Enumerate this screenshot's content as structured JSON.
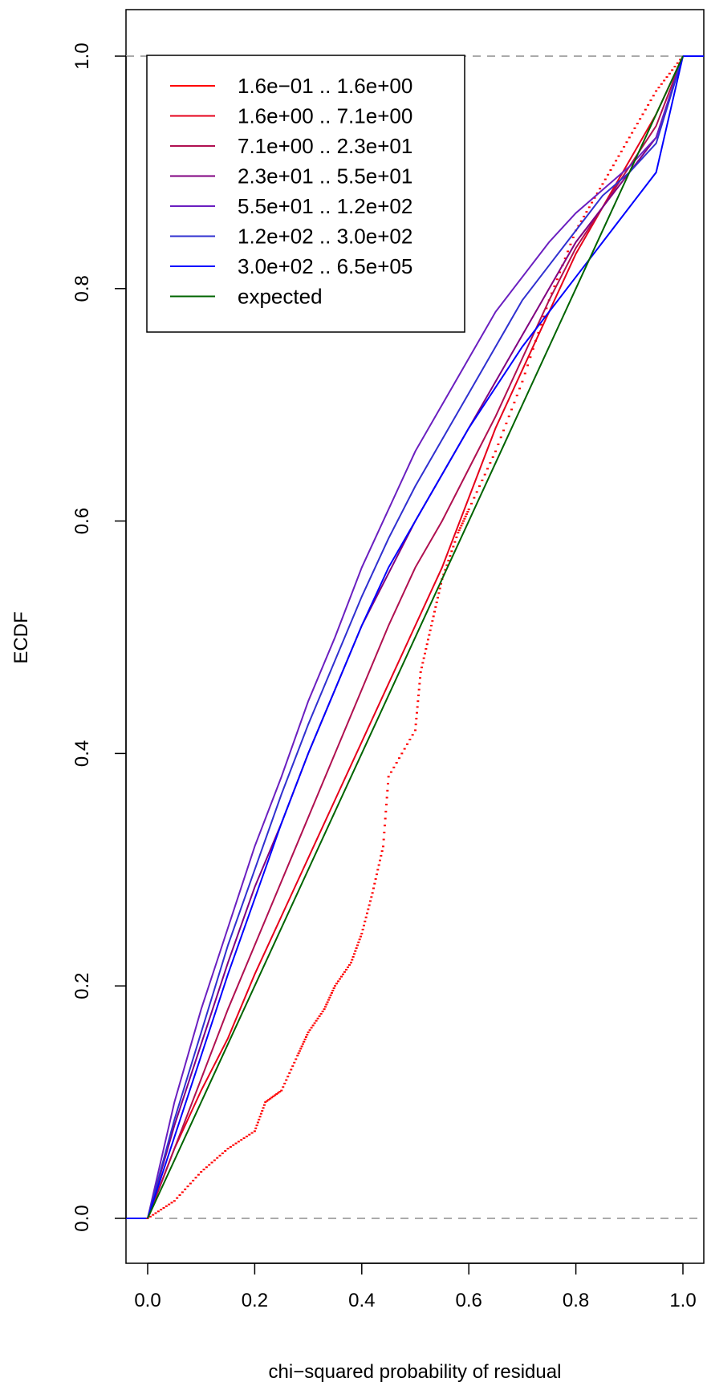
{
  "chart_data": {
    "type": "line",
    "title": "",
    "xlabel": "chi−squared probability of residual",
    "ylabel": "ECDF",
    "xlim": [
      -0.04,
      1.04
    ],
    "ylim": [
      -0.04,
      1.04
    ],
    "x_ticks": [
      "0.0",
      "0.2",
      "0.4",
      "0.6",
      "0.8",
      "1.0"
    ],
    "y_ticks": [
      "0.0",
      "0.2",
      "0.4",
      "0.6",
      "0.8",
      "1.0"
    ],
    "reference_lines": [
      0,
      1
    ],
    "grid": false,
    "legend_position": "top-left",
    "series": [
      {
        "name": "1.6e−01 .. 1.6e+00",
        "color": "#FF0000",
        "style": "points",
        "points": [
          [
            0,
            0
          ],
          [
            0.05,
            0.015
          ],
          [
            0.1,
            0.04
          ],
          [
            0.15,
            0.06
          ],
          [
            0.2,
            0.075
          ],
          [
            0.22,
            0.1
          ],
          [
            0.25,
            0.11
          ],
          [
            0.28,
            0.14
          ],
          [
            0.3,
            0.16
          ],
          [
            0.33,
            0.18
          ],
          [
            0.35,
            0.2
          ],
          [
            0.38,
            0.22
          ],
          [
            0.4,
            0.245
          ],
          [
            0.42,
            0.28
          ],
          [
            0.44,
            0.32
          ],
          [
            0.45,
            0.38
          ],
          [
            0.5,
            0.42
          ],
          [
            0.51,
            0.47
          ],
          [
            0.53,
            0.51
          ],
          [
            0.55,
            0.55
          ],
          [
            0.58,
            0.59
          ],
          [
            0.6,
            0.61
          ],
          [
            0.65,
            0.66
          ],
          [
            0.7,
            0.72
          ],
          [
            0.75,
            0.79
          ],
          [
            0.8,
            0.85
          ],
          [
            0.85,
            0.89
          ],
          [
            0.9,
            0.93
          ],
          [
            0.95,
            0.97
          ],
          [
            1,
            1
          ]
        ]
      },
      {
        "name": "1.6e+00 .. 7.1e+00",
        "color": "#E6001A",
        "style": "line",
        "points": [
          [
            0,
            0
          ],
          [
            0.05,
            0.06
          ],
          [
            0.1,
            0.11
          ],
          [
            0.15,
            0.155
          ],
          [
            0.2,
            0.21
          ],
          [
            0.25,
            0.26
          ],
          [
            0.3,
            0.31
          ],
          [
            0.35,
            0.36
          ],
          [
            0.4,
            0.41
          ],
          [
            0.45,
            0.46
          ],
          [
            0.5,
            0.51
          ],
          [
            0.55,
            0.56
          ],
          [
            0.6,
            0.62
          ],
          [
            0.65,
            0.68
          ],
          [
            0.7,
            0.73
          ],
          [
            0.75,
            0.78
          ],
          [
            0.8,
            0.83
          ],
          [
            0.85,
            0.87
          ],
          [
            0.9,
            0.91
          ],
          [
            0.95,
            0.95
          ],
          [
            1,
            1
          ]
        ]
      },
      {
        "name": "7.1e+00 .. 2.3e+01",
        "color": "#B01050",
        "style": "line",
        "points": [
          [
            0,
            0
          ],
          [
            0.05,
            0.06
          ],
          [
            0.1,
            0.12
          ],
          [
            0.15,
            0.18
          ],
          [
            0.2,
            0.235
          ],
          [
            0.25,
            0.29
          ],
          [
            0.3,
            0.345
          ],
          [
            0.35,
            0.4
          ],
          [
            0.4,
            0.455
          ],
          [
            0.45,
            0.51
          ],
          [
            0.5,
            0.56
          ],
          [
            0.55,
            0.6
          ],
          [
            0.6,
            0.645
          ],
          [
            0.65,
            0.69
          ],
          [
            0.7,
            0.74
          ],
          [
            0.75,
            0.79
          ],
          [
            0.8,
            0.835
          ],
          [
            0.85,
            0.87
          ],
          [
            0.9,
            0.905
          ],
          [
            0.95,
            0.94
          ],
          [
            1,
            1
          ]
        ]
      },
      {
        "name": "2.3e+01 .. 5.5e+01",
        "color": "#800080",
        "style": "line",
        "points": [
          [
            0,
            0
          ],
          [
            0.05,
            0.08
          ],
          [
            0.1,
            0.15
          ],
          [
            0.15,
            0.22
          ],
          [
            0.2,
            0.285
          ],
          [
            0.25,
            0.34
          ],
          [
            0.3,
            0.4
          ],
          [
            0.35,
            0.455
          ],
          [
            0.4,
            0.51
          ],
          [
            0.45,
            0.555
          ],
          [
            0.5,
            0.6
          ],
          [
            0.55,
            0.64
          ],
          [
            0.6,
            0.68
          ],
          [
            0.65,
            0.72
          ],
          [
            0.7,
            0.76
          ],
          [
            0.75,
            0.8
          ],
          [
            0.8,
            0.84
          ],
          [
            0.85,
            0.87
          ],
          [
            0.9,
            0.9
          ],
          [
            0.95,
            0.93
          ],
          [
            1,
            1
          ]
        ]
      },
      {
        "name": "5.5e+01 .. 1.2e+02",
        "color": "#6A1FC0",
        "style": "line",
        "points": [
          [
            0,
            0
          ],
          [
            0.05,
            0.1
          ],
          [
            0.1,
            0.18
          ],
          [
            0.15,
            0.25
          ],
          [
            0.2,
            0.32
          ],
          [
            0.25,
            0.38
          ],
          [
            0.3,
            0.445
          ],
          [
            0.35,
            0.5
          ],
          [
            0.4,
            0.56
          ],
          [
            0.45,
            0.61
          ],
          [
            0.5,
            0.66
          ],
          [
            0.55,
            0.7
          ],
          [
            0.6,
            0.74
          ],
          [
            0.65,
            0.78
          ],
          [
            0.7,
            0.81
          ],
          [
            0.75,
            0.84
          ],
          [
            0.8,
            0.865
          ],
          [
            0.85,
            0.885
          ],
          [
            0.9,
            0.905
          ],
          [
            0.95,
            0.93
          ],
          [
            1,
            1
          ]
        ]
      },
      {
        "name": "1.2e+02 .. 3.0e+02",
        "color": "#3030D0",
        "style": "line",
        "points": [
          [
            0,
            0
          ],
          [
            0.05,
            0.085
          ],
          [
            0.1,
            0.16
          ],
          [
            0.15,
            0.235
          ],
          [
            0.2,
            0.3
          ],
          [
            0.25,
            0.365
          ],
          [
            0.3,
            0.425
          ],
          [
            0.35,
            0.48
          ],
          [
            0.4,
            0.535
          ],
          [
            0.45,
            0.585
          ],
          [
            0.5,
            0.63
          ],
          [
            0.55,
            0.67
          ],
          [
            0.6,
            0.71
          ],
          [
            0.65,
            0.75
          ],
          [
            0.7,
            0.79
          ],
          [
            0.75,
            0.82
          ],
          [
            0.8,
            0.85
          ],
          [
            0.85,
            0.88
          ],
          [
            0.9,
            0.9
          ],
          [
            0.95,
            0.925
          ],
          [
            1,
            1
          ]
        ]
      },
      {
        "name": "3.0e+02 .. 6.5e+05",
        "color": "#0000FF",
        "style": "line",
        "points": [
          [
            0,
            0
          ],
          [
            0.05,
            0.07
          ],
          [
            0.1,
            0.14
          ],
          [
            0.15,
            0.21
          ],
          [
            0.2,
            0.275
          ],
          [
            0.25,
            0.34
          ],
          [
            0.3,
            0.4
          ],
          [
            0.35,
            0.455
          ],
          [
            0.4,
            0.51
          ],
          [
            0.45,
            0.56
          ],
          [
            0.5,
            0.6
          ],
          [
            0.55,
            0.64
          ],
          [
            0.6,
            0.68
          ],
          [
            0.65,
            0.715
          ],
          [
            0.7,
            0.75
          ],
          [
            0.75,
            0.78
          ],
          [
            0.8,
            0.81
          ],
          [
            0.85,
            0.84
          ],
          [
            0.9,
            0.87
          ],
          [
            0.95,
            0.9
          ],
          [
            1,
            1
          ]
        ]
      },
      {
        "name": "expected",
        "color": "#006400",
        "style": "line",
        "points": [
          [
            0,
            0
          ],
          [
            1,
            1
          ]
        ]
      }
    ]
  }
}
